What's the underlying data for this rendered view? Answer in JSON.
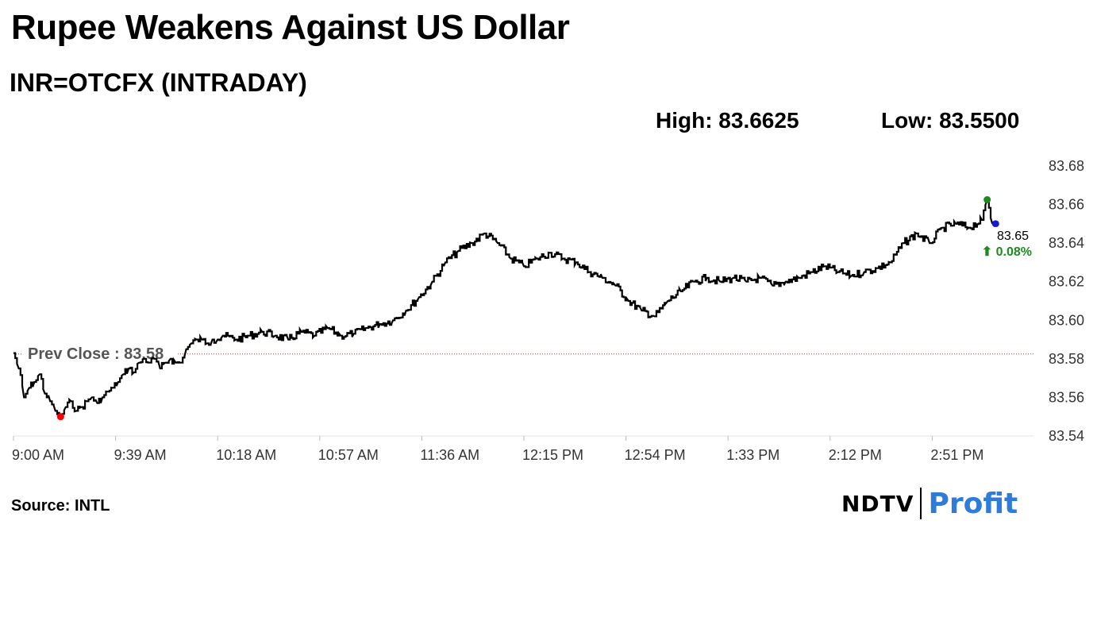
{
  "header": {
    "title": "Rupee Weakens Against US Dollar",
    "subtitle": "INR=OTCFX (INTRADAY)",
    "high_label": "High: 83.6625",
    "low_label": "Low: 83.5500"
  },
  "footer": {
    "source": "Source: INTL",
    "logo_ndtv": "NDTV",
    "logo_profit": "Profit"
  },
  "colors": {
    "line": "#000000",
    "prev_close_line": "#c0392b",
    "high_dot": "#1e8a1e",
    "low_dot": "#ff0000",
    "last_dot": "#1a1acc",
    "change_text": "#1e8a1e",
    "logo_profit": "#2f7bd8"
  },
  "chart_data": {
    "type": "line",
    "title": "Rupee Weakens Against US Dollar",
    "subtitle": "INR=OTCFX (INTRADAY)",
    "ylim": [
      83.54,
      83.68
    ],
    "yticks": [
      "83.68",
      "83.66",
      "83.64",
      "83.62",
      "83.60",
      "83.58",
      "83.56",
      "83.54"
    ],
    "xticks": [
      "9:00 AM",
      "9:39 AM",
      "10:18 AM",
      "10:57 AM",
      "11:36 AM",
      "12:15 PM",
      "12:54 PM",
      "1:33 PM",
      "2:12 PM",
      "2:51 PM"
    ],
    "prev_close": 83.5825,
    "prev_close_label": "Prev Close : 83.58",
    "high": 83.6625,
    "low": 83.55,
    "last_value_label": "83.65",
    "change_label": "⬆ 0.08%",
    "series": [
      {
        "x": [
          "9:00",
          "9:02",
          "9:04",
          "9:06",
          "9:08",
          "9:10",
          "9:12",
          "9:14",
          "9:16",
          "9:18",
          "9:20",
          "9:22",
          "9:24",
          "9:26",
          "9:28",
          "9:30",
          "9:32",
          "9:34",
          "9:36",
          "9:38",
          "9:40",
          "9:42",
          "9:44",
          "9:46",
          "9:48",
          "9:50",
          "9:52",
          "9:54",
          "9:56",
          "9:58",
          "10:00",
          "10:02",
          "10:04",
          "10:06",
          "10:08",
          "10:10",
          "10:12",
          "10:14",
          "10:16",
          "10:18",
          "10:20",
          "10:25",
          "10:30",
          "10:35",
          "10:40",
          "10:45",
          "10:50",
          "10:55",
          "11:00",
          "11:05",
          "11:10",
          "11:15",
          "11:20",
          "11:25",
          "11:30",
          "11:35",
          "11:40",
          "11:45",
          "11:50",
          "11:55",
          "12:00",
          "12:05",
          "12:10",
          "12:15",
          "12:20",
          "12:25",
          "12:30",
          "12:35",
          "12:40",
          "12:45",
          "12:50",
          "12:55",
          "13:00",
          "13:05",
          "13:10",
          "13:15",
          "13:20",
          "13:25",
          "13:30",
          "13:35",
          "13:40",
          "13:45",
          "13:50",
          "13:55",
          "14:00",
          "14:05",
          "14:10",
          "14:15",
          "14:20",
          "14:25",
          "14:30",
          "14:35",
          "14:40",
          "14:45",
          "14:50",
          "14:55",
          "15:00",
          "15:05",
          "15:10",
          "15:12",
          "15:14"
        ],
        "y": [
          83.583,
          83.575,
          83.56,
          83.565,
          83.568,
          83.572,
          83.562,
          83.558,
          83.553,
          83.55,
          83.555,
          83.558,
          83.553,
          83.555,
          83.558,
          83.56,
          83.557,
          83.56,
          83.563,
          83.565,
          83.568,
          83.572,
          83.575,
          83.573,
          83.578,
          83.58,
          83.578,
          83.58,
          83.575,
          83.578,
          83.58,
          83.578,
          83.578,
          83.585,
          83.588,
          83.59,
          83.59,
          83.588,
          83.59,
          83.59,
          83.592,
          83.59,
          83.592,
          83.594,
          83.592,
          83.59,
          83.594,
          83.592,
          83.596,
          83.592,
          83.593,
          83.596,
          83.598,
          83.6,
          83.605,
          83.612,
          83.62,
          83.63,
          83.636,
          83.64,
          83.645,
          83.64,
          83.632,
          83.628,
          83.632,
          83.635,
          83.632,
          83.63,
          83.625,
          83.622,
          83.618,
          83.61,
          83.605,
          83.602,
          83.61,
          83.615,
          83.62,
          83.622,
          83.62,
          83.622,
          83.62,
          83.622,
          83.618,
          83.62,
          83.622,
          83.625,
          83.628,
          83.625,
          83.623,
          83.625,
          83.627,
          83.63,
          83.64,
          83.645,
          83.64,
          83.648,
          83.65,
          83.648,
          83.652,
          83.6625,
          83.65
        ]
      }
    ]
  }
}
